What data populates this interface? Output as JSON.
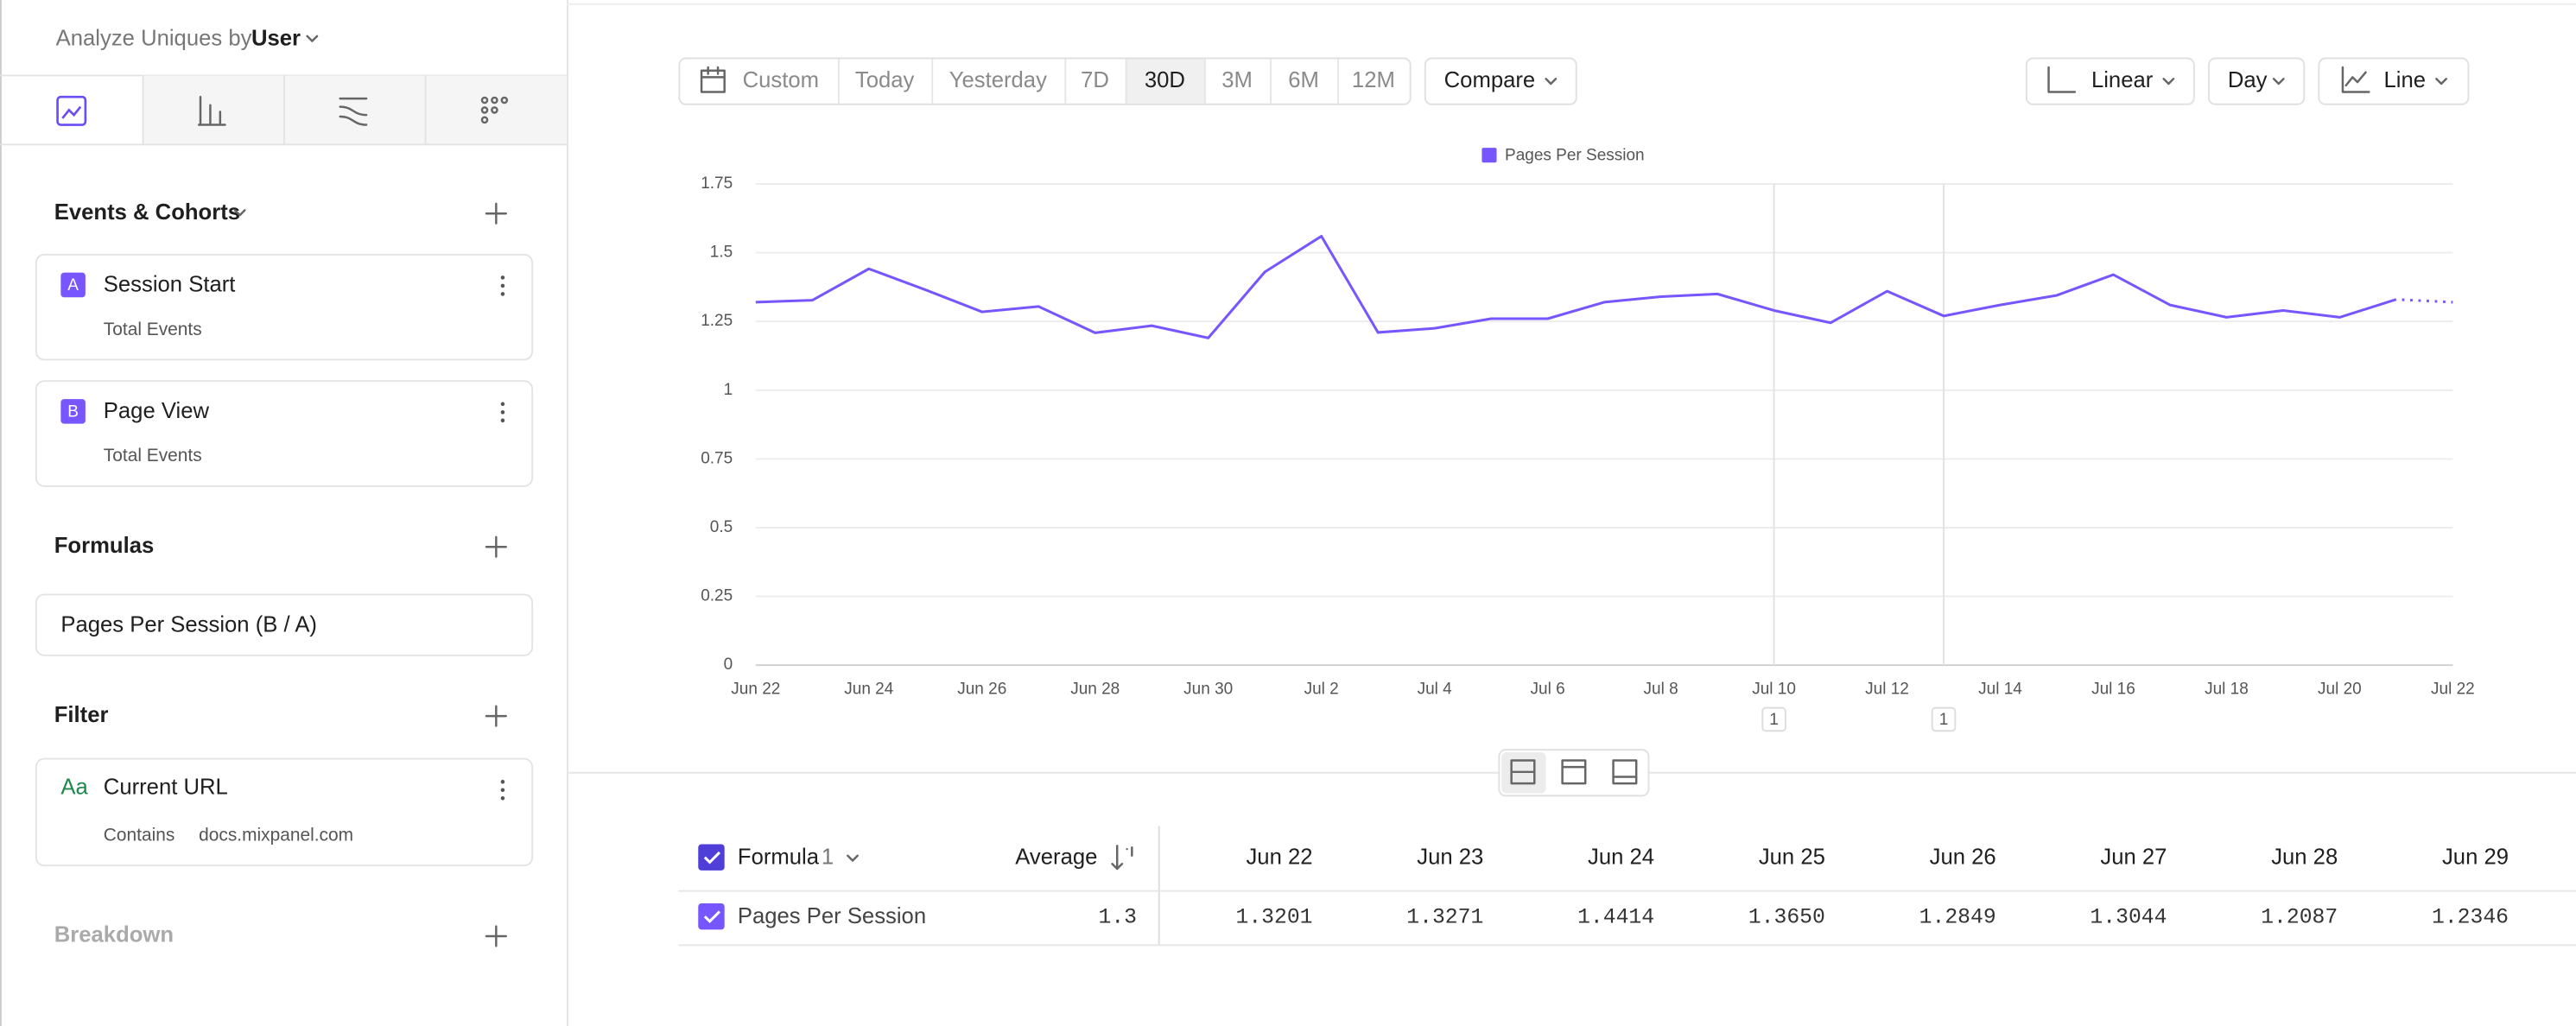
{
  "sidebar": {
    "analyze_label": "Analyze Uniques by",
    "analyze_value": "User",
    "events_title": "Events & Cohorts",
    "events": [
      {
        "badge": "A",
        "name": "Session Start",
        "measure": "Total Events"
      },
      {
        "badge": "B",
        "name": "Page View",
        "measure": "Total Events"
      }
    ],
    "formulas_title": "Formulas",
    "formula": "Pages Per Session (B / A)",
    "filter_title": "Filter",
    "filter": {
      "icon": "Aa",
      "property": "Current URL",
      "operator": "Contains",
      "value": "docs.mixpanel.com"
    },
    "breakdown_title": "Breakdown"
  },
  "toolbar": {
    "ranges": [
      "Custom",
      "Today",
      "Yesterday",
      "7D",
      "30D",
      "3M",
      "6M",
      "12M"
    ],
    "compare": "Compare",
    "scale": "Linear",
    "interval": "Day",
    "chart_type": "Line"
  },
  "chart_data": {
    "type": "line",
    "categories": [
      "Jun 22",
      null,
      "Jun 24",
      null,
      "Jun 26",
      null,
      "Jun 28",
      null,
      "Jun 30",
      null,
      "Jul 2",
      null,
      "Jul 4",
      null,
      "Jul 6",
      null,
      "Jul 8",
      null,
      "Jul 10",
      null,
      "Jul 12",
      null,
      "Jul 14",
      null,
      "Jul 16",
      null,
      "Jul 18",
      null,
      "Jul 20",
      null,
      "Jul 22"
    ],
    "series": [
      {
        "name": "Pages Per Session",
        "color": "#7856ff",
        "values": [
          1.3201,
          1.3271,
          1.4414,
          1.365,
          1.2849,
          1.3044,
          1.2087,
          1.2346,
          1.19,
          1.43,
          1.56,
          1.21,
          1.225,
          1.26,
          1.26,
          1.32,
          1.34,
          1.35,
          1.29,
          1.245,
          1.36,
          1.27,
          1.31,
          1.345,
          1.42,
          1.31,
          1.265,
          1.29,
          1.265,
          1.33,
          1.32
        ]
      }
    ],
    "ylim": [
      0,
      1.75
    ],
    "yticks": [
      0,
      0.25,
      0.5,
      0.75,
      1,
      1.25,
      1.5,
      1.75
    ],
    "grid": true,
    "annotations": [
      {
        "x": 18,
        "label": "1"
      },
      {
        "x": 21,
        "label": "1"
      }
    ]
  },
  "table": {
    "header": {
      "name": "Formula",
      "count": "1",
      "average": "Average",
      "columns": [
        "Jun 22",
        "Jun 23",
        "Jun 24",
        "Jun 25",
        "Jun 26",
        "Jun 27",
        "Jun 28",
        "Jun 29"
      ]
    },
    "rows": [
      {
        "name": "Pages Per Session",
        "average": "1.3",
        "values": [
          "1.3201",
          "1.3271",
          "1.4414",
          "1.3650",
          "1.2849",
          "1.3044",
          "1.2087",
          "1.2346"
        ]
      }
    ]
  }
}
